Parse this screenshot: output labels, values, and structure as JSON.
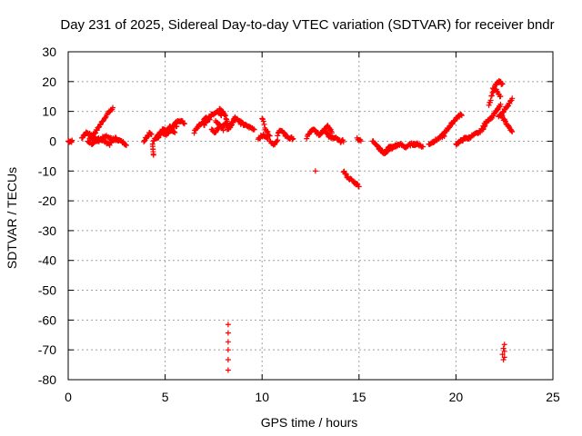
{
  "chart_data": {
    "type": "scatter",
    "title": "Day 231 of 2025, Sidereal Day-to-day VTEC variation (SDTVAR) for receiver bndr",
    "xlabel": "GPS time / hours",
    "ylabel": "SDTVAR / TECUs",
    "xlim": [
      0,
      25
    ],
    "ylim": [
      -80,
      30
    ],
    "x_ticks": [
      0,
      5,
      10,
      15,
      20,
      25
    ],
    "y_ticks": [
      30,
      20,
      10,
      0,
      -10,
      -20,
      -30,
      -40,
      -50,
      -60,
      -70,
      -80
    ],
    "grid": true,
    "marker": "+",
    "colors": {
      "points": "#ff0000",
      "grid": "#a0a0a0",
      "axes": "#000000"
    },
    "segments": [
      {
        "x0": 0.0,
        "x1": 0.2,
        "ys": [
          0,
          0,
          0
        ],
        "n": 8
      },
      {
        "x0": 0.7,
        "x1": 1.4,
        "ys": [
          1,
          3,
          2,
          1
        ],
        "n": 26
      },
      {
        "x0": 1.1,
        "x1": 2.3,
        "ys": [
          1,
          3,
          6,
          9,
          11
        ],
        "n": 32
      },
      {
        "x0": 1.0,
        "x1": 3.0,
        "ys": [
          0,
          -1,
          1,
          0,
          -1,
          1,
          0,
          -1
        ],
        "n": 50
      },
      {
        "x0": 1.2,
        "x1": 2.6,
        "ys": [
          1,
          0,
          2,
          1,
          0
        ],
        "n": 30
      },
      {
        "x0": 3.9,
        "x1": 4.3,
        "ys": [
          0,
          1,
          2,
          3,
          2
        ],
        "n": 14
      },
      {
        "x0": 4.35,
        "x1": 4.4,
        "ys": [
          -1,
          -3,
          -5
        ],
        "n": 7
      },
      {
        "x0": 4.4,
        "x1": 5.4,
        "ys": [
          0,
          2,
          4,
          3,
          5
        ],
        "n": 34
      },
      {
        "x0": 4.6,
        "x1": 5.5,
        "ys": [
          1,
          3,
          2,
          4,
          3
        ],
        "n": 28
      },
      {
        "x0": 5.1,
        "x1": 5.6,
        "ys": [
          3,
          5,
          4,
          6,
          5
        ],
        "n": 16
      },
      {
        "x0": 5.3,
        "x1": 6.0,
        "ys": [
          4,
          6,
          7,
          6
        ],
        "n": 22
      },
      {
        "x0": 6.5,
        "x1": 7.3,
        "ys": [
          3,
          5,
          6,
          8,
          7
        ],
        "n": 28
      },
      {
        "x0": 7.0,
        "x1": 7.9,
        "ys": [
          5,
          8,
          9,
          10,
          9
        ],
        "n": 30
      },
      {
        "x0": 7.4,
        "x1": 8.0,
        "ys": [
          4,
          3,
          5,
          4
        ],
        "n": 20
      },
      {
        "x0": 7.8,
        "x1": 8.2,
        "ys": [
          11,
          10,
          9,
          7
        ],
        "n": 14
      },
      {
        "x0": 7.6,
        "x1": 8.6,
        "ys": [
          7,
          5,
          6,
          5,
          8
        ],
        "n": 30
      },
      {
        "x0": 8.2,
        "x1": 9.0,
        "ys": [
          4,
          5,
          8,
          7,
          6
        ],
        "n": 30
      },
      {
        "x0": 8.9,
        "x1": 9.6,
        "ys": [
          6,
          5,
          4
        ],
        "n": 22
      },
      {
        "x0": 9.8,
        "x1": 10.3,
        "ys": [
          1,
          2,
          1
        ],
        "n": 16
      },
      {
        "x0": 10.0,
        "x1": 10.4,
        "ys": [
          8,
          5,
          3,
          2
        ],
        "n": 12
      },
      {
        "x0": 10.4,
        "x1": 10.8,
        "ys": [
          0,
          -1,
          0
        ],
        "n": 12
      },
      {
        "x0": 10.8,
        "x1": 11.2,
        "ys": [
          2,
          4,
          3,
          2
        ],
        "n": 14
      },
      {
        "x0": 11.2,
        "x1": 11.6,
        "ys": [
          2,
          1,
          1
        ],
        "n": 12
      },
      {
        "x0": 12.3,
        "x1": 12.8,
        "ys": [
          1,
          3,
          4,
          3
        ],
        "n": 16
      },
      {
        "x0": 12.8,
        "x1": 13.5,
        "ys": [
          3,
          2,
          4,
          3,
          2
        ],
        "n": 24
      },
      {
        "x0": 13.2,
        "x1": 13.6,
        "ys": [
          4,
          5,
          3
        ],
        "n": 14
      },
      {
        "x0": 13.4,
        "x1": 14.2,
        "ys": [
          2,
          1,
          1,
          0,
          0
        ],
        "n": 26
      },
      {
        "x0": 14.2,
        "x1": 15.0,
        "ys": [
          -10,
          -12,
          -13,
          -14,
          -15
        ],
        "n": 24
      },
      {
        "x0": 14.9,
        "x1": 15.1,
        "ys": [
          1,
          0
        ],
        "n": 6
      },
      {
        "x0": 15.7,
        "x1": 16.5,
        "ys": [
          0,
          -1,
          -3,
          -4,
          -3
        ],
        "n": 26
      },
      {
        "x0": 16.0,
        "x1": 17.0,
        "ys": [
          -2,
          -4,
          -3,
          -2,
          -1
        ],
        "n": 30
      },
      {
        "x0": 16.5,
        "x1": 18.0,
        "ys": [
          -2,
          -2,
          -1,
          -2,
          -1,
          -1
        ],
        "n": 44
      },
      {
        "x0": 17.8,
        "x1": 18.3,
        "ys": [
          -1,
          -1,
          -2
        ],
        "n": 14
      },
      {
        "x0": 18.6,
        "x1": 19.4,
        "ys": [
          -1,
          0,
          1,
          2
        ],
        "n": 24
      },
      {
        "x0": 19.3,
        "x1": 20.3,
        "ys": [
          2,
          4,
          6,
          8,
          9
        ],
        "n": 32
      },
      {
        "x0": 20.0,
        "x1": 20.7,
        "ys": [
          -1,
          0,
          1,
          1
        ],
        "n": 22
      },
      {
        "x0": 20.6,
        "x1": 21.5,
        "ys": [
          1,
          2,
          3,
          5
        ],
        "n": 26
      },
      {
        "x0": 21.4,
        "x1": 22.3,
        "ys": [
          5,
          7,
          8,
          10,
          12
        ],
        "n": 28
      },
      {
        "x0": 21.7,
        "x1": 22.4,
        "ys": [
          12,
          16,
          19,
          20,
          19
        ],
        "n": 24
      },
      {
        "x0": 21.9,
        "x1": 22.3,
        "ys": [
          18,
          17,
          15
        ],
        "n": 12
      },
      {
        "x0": 22.2,
        "x1": 22.9,
        "ys": [
          8,
          10,
          12,
          14
        ],
        "n": 22
      },
      {
        "x0": 22.3,
        "x1": 22.9,
        "ys": [
          9,
          7,
          5,
          3
        ],
        "n": 20
      }
    ],
    "points": [
      {
        "x": 12.75,
        "y": -10
      },
      {
        "x": 8.25,
        "y": -61.5
      },
      {
        "x": 8.25,
        "y": -64.3
      },
      {
        "x": 8.25,
        "y": -67.3
      },
      {
        "x": 8.25,
        "y": -70.0
      },
      {
        "x": 8.25,
        "y": -73.3
      },
      {
        "x": 8.25,
        "y": -76.8
      },
      {
        "x": 22.5,
        "y": -68.2
      },
      {
        "x": 22.45,
        "y": -69.5
      },
      {
        "x": 22.5,
        "y": -70.5
      },
      {
        "x": 22.4,
        "y": -71.5
      },
      {
        "x": 22.5,
        "y": -72.5
      },
      {
        "x": 22.45,
        "y": -73.3
      }
    ]
  }
}
